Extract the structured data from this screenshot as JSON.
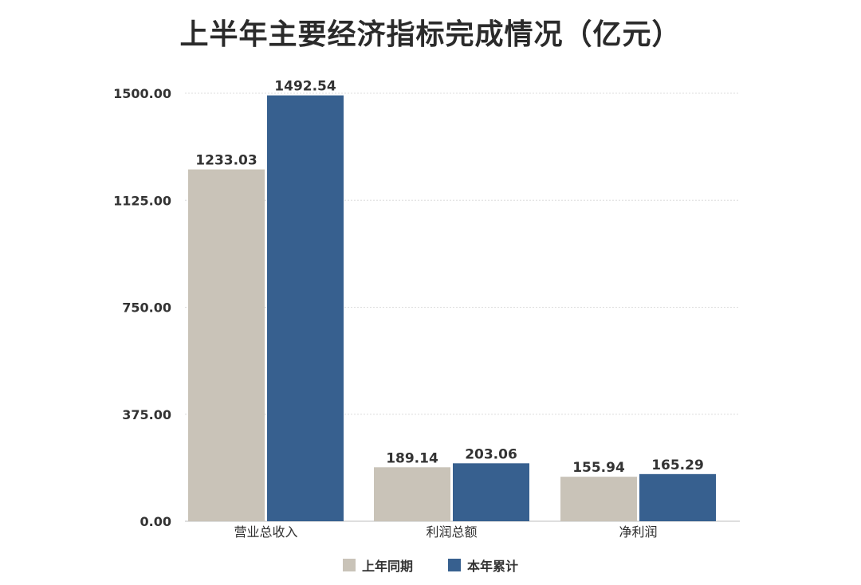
{
  "chart_data": {
    "type": "bar",
    "title": "上半年主要经济指标完成情况（亿元）",
    "categories": [
      "营业总收入",
      "利润总额",
      "净利润"
    ],
    "series": [
      {
        "name": "上年同期",
        "values": [
          1233.03,
          189.14,
          155.94
        ],
        "color": "#c9c3b8"
      },
      {
        "name": "本年累计",
        "values": [
          1492.54,
          203.06,
          165.29
        ],
        "color": "#37608f"
      }
    ],
    "value_labels": [
      [
        "1233.03",
        "189.14",
        "155.94"
      ],
      [
        "1492.54",
        "203.06",
        "165.29"
      ]
    ],
    "ylim": [
      0,
      1500
    ],
    "yticks": [
      0,
      375,
      750,
      1125,
      1500
    ],
    "ytick_labels": [
      "0.00",
      "375.00",
      "750.00",
      "1125.00",
      "1500.00"
    ],
    "xlabel": "",
    "ylabel": "",
    "grid": true,
    "grid_color": "#dcdcdc",
    "legend_position": "bottom"
  }
}
